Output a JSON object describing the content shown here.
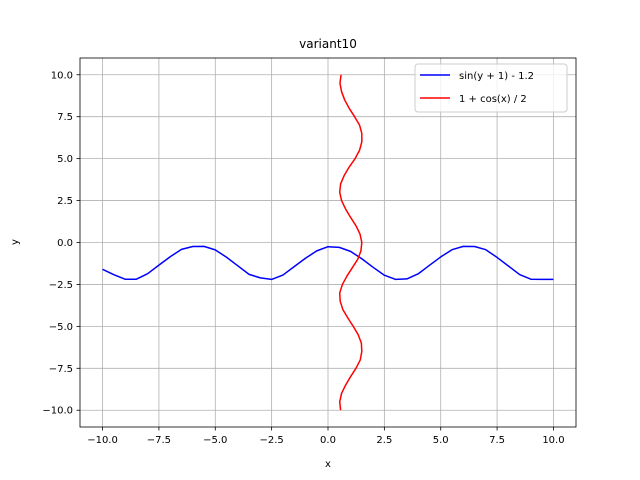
{
  "chart_data": {
    "type": "line",
    "title": "variant10",
    "xlabel": "x",
    "ylabel": "y",
    "xlim": [
      -11.0,
      11.0
    ],
    "ylim": [
      -11.0,
      11.0
    ],
    "xticks": [
      -10.0,
      -7.5,
      -5.0,
      -2.5,
      0.0,
      2.5,
      5.0,
      7.5,
      10.0
    ],
    "yticks": [
      -10.0,
      -7.5,
      -5.0,
      -2.5,
      0.0,
      2.5,
      5.0,
      7.5,
      10.0
    ],
    "xtick_labels": [
      "−10.0",
      "−7.5",
      "−5.0",
      "−2.5",
      "0.0",
      "2.5",
      "5.0",
      "7.5",
      "10.0"
    ],
    "ytick_labels": [
      "−10.0",
      "−7.5",
      "−5.0",
      "−2.5",
      "0.0",
      "2.5",
      "5.0",
      "7.5",
      "10.0"
    ],
    "grid": true,
    "legend_position": "top-right",
    "series": [
      {
        "name": "sin(y + 1) - 1.2",
        "color": "#0000ff",
        "x": [
          -10.0,
          -9.5,
          -9.0,
          -8.5,
          -8.0,
          -7.5,
          -7.0,
          -6.5,
          -6.0,
          -5.5,
          -5.0,
          -4.5,
          -4.0,
          -3.5,
          -3.0,
          -2.5,
          -2.0,
          -1.5,
          -1.0,
          -0.5,
          0.0,
          0.5,
          1.0,
          1.5,
          2.0,
          2.5,
          3.0,
          3.5,
          4.0,
          4.5,
          5.0,
          5.5,
          6.0,
          6.5,
          7.0,
          7.5,
          8.0,
          8.5,
          9.0,
          9.5,
          10.0
        ],
        "y": [
          -1.6,
          -1.92,
          -2.19,
          -2.19,
          -1.86,
          -1.35,
          -0.85,
          -0.41,
          -0.24,
          -0.23,
          -0.44,
          -0.88,
          -1.39,
          -1.9,
          -2.11,
          -2.2,
          -1.94,
          -1.44,
          -0.94,
          -0.5,
          -0.25,
          -0.29,
          -0.53,
          -0.97,
          -1.48,
          -1.95,
          -2.2,
          -2.17,
          -1.87,
          -1.36,
          -0.86,
          -0.43,
          -0.23,
          -0.24,
          -0.43,
          -0.89,
          -1.4,
          -1.91,
          -2.19,
          -2.2,
          -2.2
        ]
      },
      {
        "name": "1 + cos(x) / 2",
        "color": "#ff0000",
        "x": [
          0.58,
          0.53,
          0.6,
          0.74,
          0.94,
          1.18,
          1.4,
          1.5,
          1.5,
          1.4,
          1.2,
          0.94,
          0.72,
          0.56,
          0.52,
          0.6,
          0.78,
          1.0,
          1.24,
          1.42,
          1.5,
          1.46,
          1.32,
          1.08,
          0.84,
          0.64,
          0.52,
          0.54,
          0.66,
          0.88,
          1.12,
          1.34,
          1.48,
          1.5,
          1.43,
          1.24,
          1.0,
          0.78,
          0.6,
          0.52,
          0.56
        ],
        "y": [
          10.0,
          9.5,
          9.0,
          8.5,
          8.0,
          7.5,
          7.0,
          6.5,
          6.0,
          5.5,
          5.0,
          4.5,
          4.0,
          3.5,
          3.0,
          2.5,
          2.0,
          1.5,
          1.0,
          0.5,
          0.0,
          -0.5,
          -1.0,
          -1.5,
          -2.0,
          -2.5,
          -3.0,
          -3.5,
          -4.0,
          -4.5,
          -5.0,
          -5.5,
          -6.0,
          -6.5,
          -7.0,
          -7.5,
          -8.0,
          -8.5,
          -9.0,
          -9.5,
          -10.0
        ]
      }
    ]
  }
}
